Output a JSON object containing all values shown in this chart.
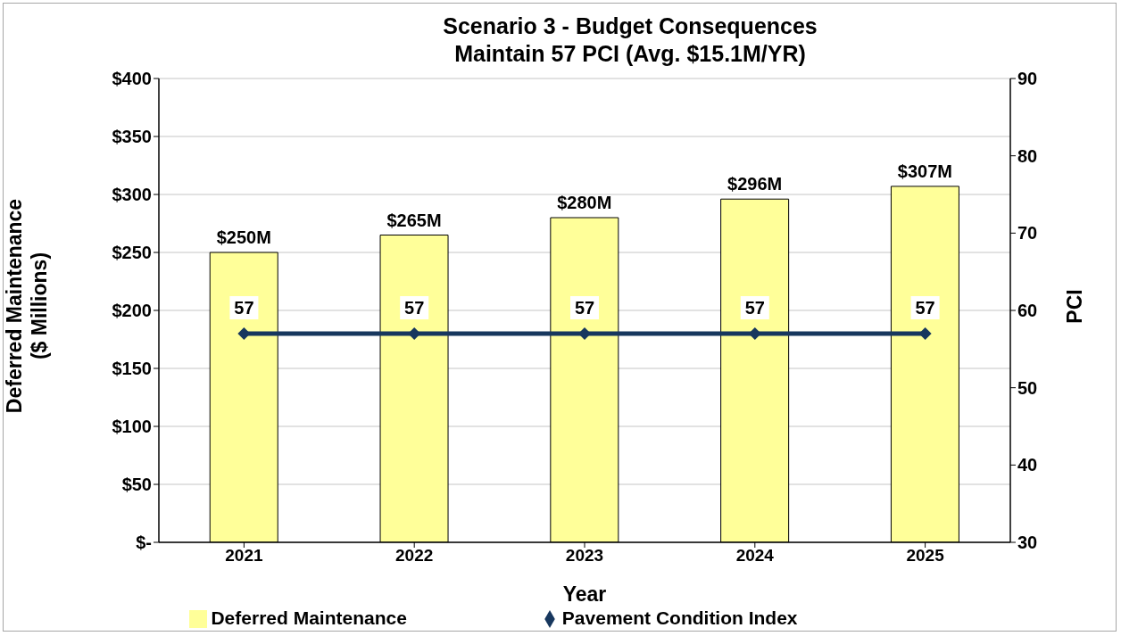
{
  "chart_data": {
    "type": "bar",
    "title": "Scenario 3 - Budget Consequences",
    "subtitle": "Maintain 57 PCI (Avg. $15.1M/YR)",
    "xlabel": "Year",
    "ylabel": "Deferred Maintenance\n($ Millions)",
    "y2label": "PCI",
    "categories": [
      "2021",
      "2022",
      "2023",
      "2024",
      "2025"
    ],
    "series": [
      {
        "name": "Deferred Maintenance",
        "color": "#ffff99",
        "values": [
          250,
          265,
          280,
          296,
          307
        ],
        "value_labels": [
          "$250M",
          "$265M",
          "$280M",
          "$296M",
          "$307M"
        ]
      },
      {
        "name": "Pavement Condition Index",
        "type": "line",
        "axis": "y2",
        "color": "#17375e",
        "values": [
          57,
          57,
          57,
          57,
          57
        ],
        "value_labels": [
          "57",
          "57",
          "57",
          "57",
          "57"
        ],
        "marker": "diamond",
        "line_style": "solid"
      }
    ],
    "ylim": [
      0,
      400
    ],
    "yticks": [
      {
        "value": 0,
        "label": "$-"
      },
      {
        "value": 50,
        "label": "$50"
      },
      {
        "value": 100,
        "label": "$100"
      },
      {
        "value": 150,
        "label": "$150"
      },
      {
        "value": 200,
        "label": "$200"
      },
      {
        "value": 250,
        "label": "$250"
      },
      {
        "value": 300,
        "label": "$300"
      },
      {
        "value": 350,
        "label": "$350"
      },
      {
        "value": 400,
        "label": "$400"
      }
    ],
    "y2lim": [
      30,
      90
    ],
    "y2ticks": [
      30,
      40,
      50,
      60,
      70,
      80,
      90
    ],
    "grid": "y",
    "legend": "bottom"
  }
}
